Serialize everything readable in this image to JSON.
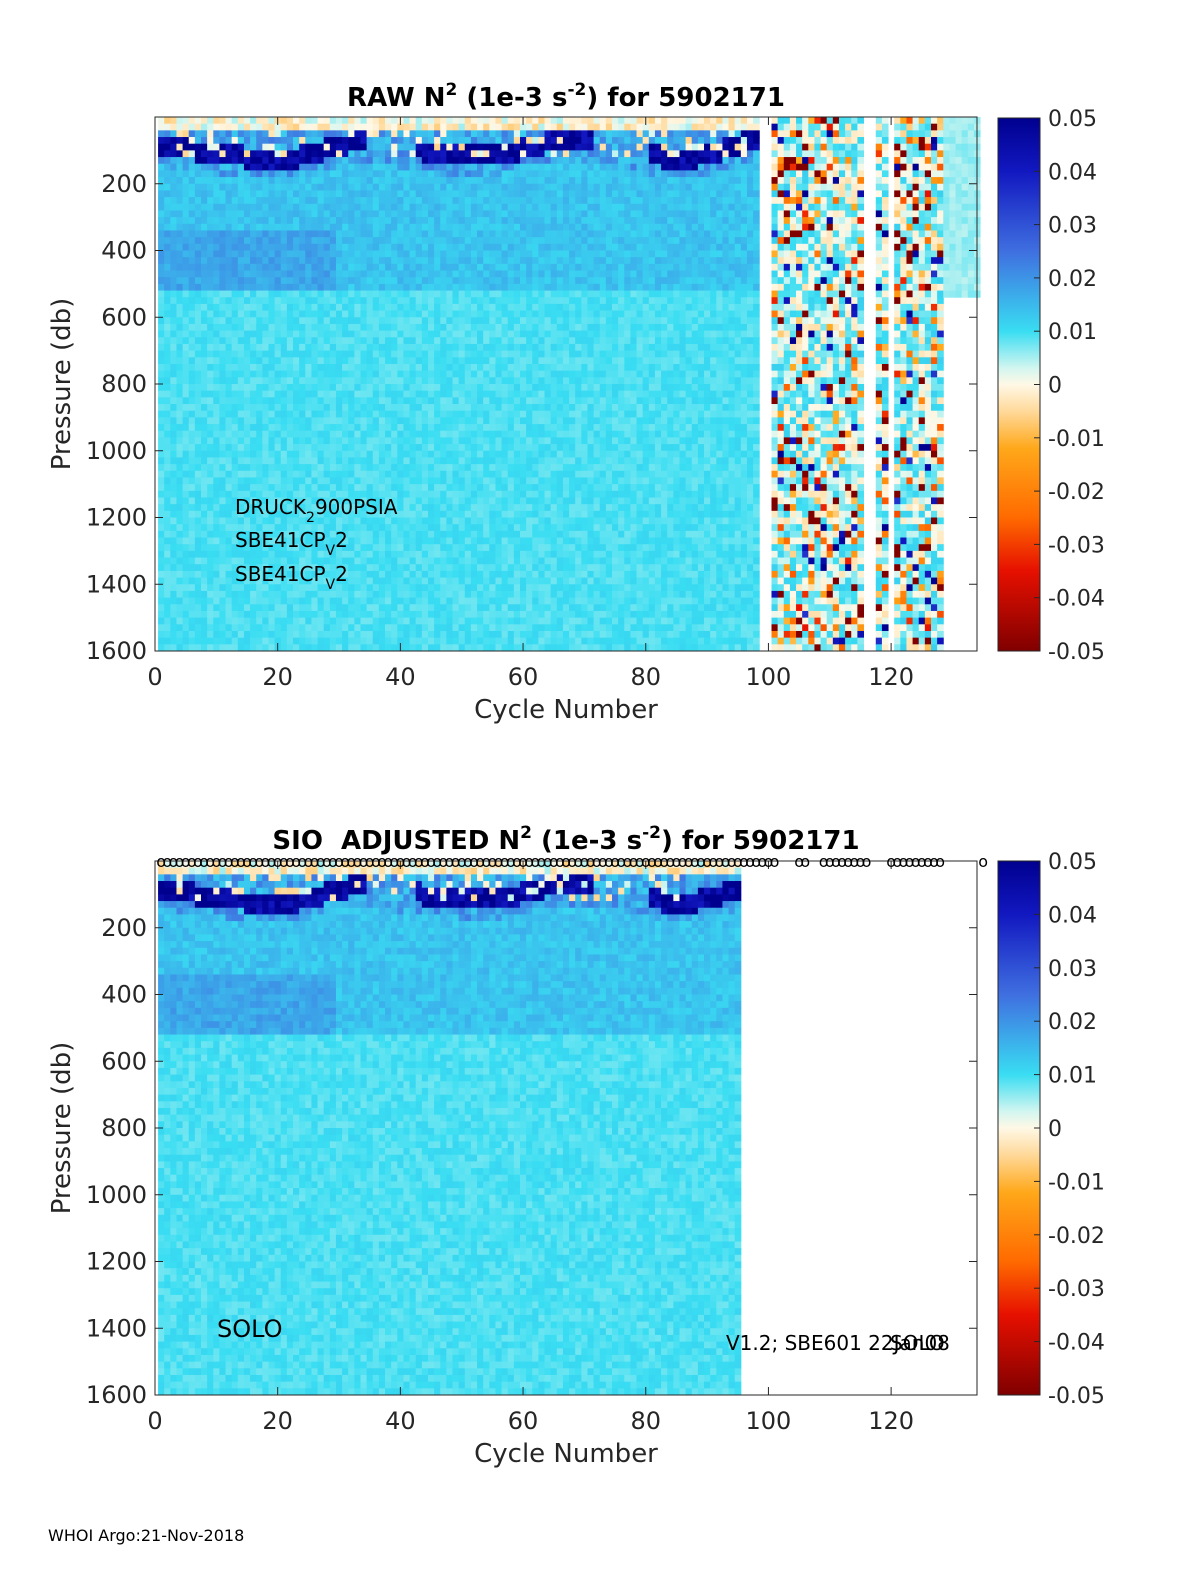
{
  "footer": "WHOI Argo:21-Nov-2018",
  "colorbar": {
    "ticks": [
      "0.05",
      "0.04",
      "0.03",
      "0.02",
      "0.01",
      "0",
      "-0.01",
      "-0.02",
      "-0.03",
      "-0.04",
      "-0.05"
    ],
    "range": [
      -0.05,
      0.05
    ]
  },
  "chart_data": [
    {
      "type": "heatmap",
      "title_main": "RAW N",
      "title_sup1": "2",
      "title_mid": " (1e-3 s",
      "title_sup2": "-2",
      "title_end": ") for 5902171",
      "xlabel": "Cycle Number",
      "ylabel": "Pressure (db)",
      "xlim": [
        0,
        134
      ],
      "ylim": [
        1600,
        0
      ],
      "xticks": [
        "0",
        "20",
        "40",
        "60",
        "80",
        "100",
        "120"
      ],
      "yticks": [
        "200",
        "400",
        "600",
        "800",
        "1000",
        "1200",
        "1400",
        "1600"
      ],
      "sensors": {
        "line1_a": "DRUCK",
        "line1_sub": "2",
        "line1_b": "900PSIA",
        "line2_a": "SBE41CP",
        "line2_sub": "V",
        "line2_b": "2",
        "line3_a": "SBE41CP",
        "line3_sub": "V",
        "line3_b": "2"
      },
      "data_extent_cycles": [
        1,
        128
      ]
    },
    {
      "type": "heatmap",
      "title_main": "SIO  ADJUSTED N",
      "title_sup1": "2",
      "title_mid": " (1e-3 s",
      "title_sup2": "-2",
      "title_end": ") for 5902171",
      "xlabel": "Cycle Number",
      "ylabel": "Pressure (db)",
      "xlim": [
        0,
        134
      ],
      "ylim": [
        1600,
        0
      ],
      "xticks": [
        "0",
        "20",
        "40",
        "60",
        "80",
        "100",
        "120"
      ],
      "yticks": [
        "200",
        "400",
        "600",
        "800",
        "1000",
        "1200",
        "1400",
        "1600"
      ],
      "float_label": "SOLO",
      "version_label": "V1.2; SBE601 22Jan08",
      "version_overlay": "SOLO",
      "marker_glyph": "o",
      "data_extent_cycles": [
        1,
        95
      ],
      "marker_cycles": [
        1,
        2,
        3,
        4,
        5,
        6,
        7,
        8,
        9,
        10,
        11,
        12,
        13,
        14,
        15,
        16,
        17,
        18,
        19,
        20,
        21,
        22,
        23,
        24,
        25,
        26,
        27,
        28,
        29,
        30,
        31,
        32,
        33,
        34,
        35,
        36,
        37,
        38,
        39,
        40,
        41,
        42,
        43,
        44,
        45,
        46,
        47,
        48,
        49,
        50,
        51,
        52,
        53,
        54,
        55,
        56,
        57,
        58,
        59,
        60,
        61,
        62,
        63,
        64,
        65,
        66,
        67,
        68,
        69,
        70,
        71,
        72,
        73,
        74,
        75,
        76,
        77,
        78,
        79,
        80,
        81,
        82,
        83,
        84,
        85,
        86,
        87,
        88,
        89,
        90,
        91,
        92,
        93,
        94,
        95,
        96,
        97,
        98,
        99,
        100,
        101,
        105,
        106,
        109,
        110,
        111,
        112,
        113,
        114,
        115,
        116,
        120,
        121,
        122,
        123,
        124,
        125,
        126,
        127,
        128,
        135
      ]
    }
  ]
}
